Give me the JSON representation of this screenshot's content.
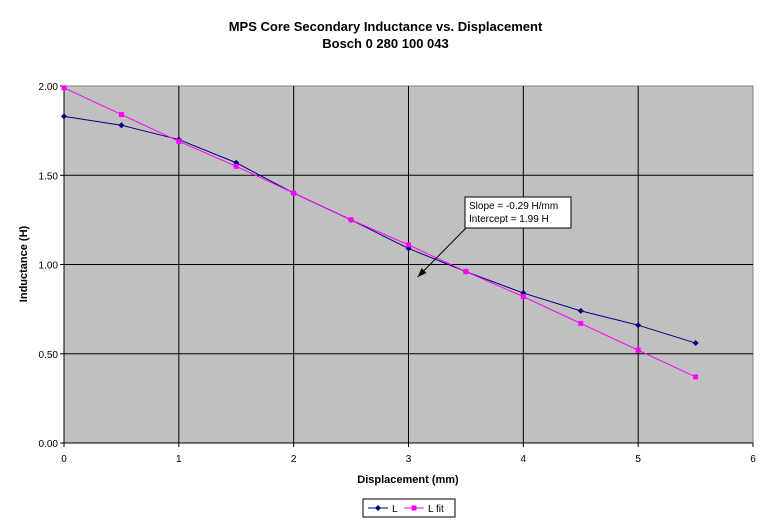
{
  "chart_data": {
    "type": "line",
    "title": "MPS Core Secondary Inductance vs. Displacement",
    "subtitle": "Bosch 0 280 100 043",
    "xlabel": "Displacement (mm)",
    "ylabel": "Inductance (H)",
    "xlim": [
      0,
      6
    ],
    "ylim": [
      0,
      2
    ],
    "x_ticks": [
      0,
      1,
      2,
      3,
      4,
      5,
      6
    ],
    "x_tick_labels": [
      "0",
      "1",
      "2",
      "3",
      "4",
      "5",
      "6"
    ],
    "y_ticks": [
      0,
      0.5,
      1.0,
      1.5,
      2.0
    ],
    "y_tick_labels": [
      "0.00",
      "0.50",
      "1.00",
      "1.50",
      "2.00"
    ],
    "grid": true,
    "plot_background": "#c0c0c0",
    "legend_placement": "bottom-center",
    "series": [
      {
        "name": "L",
        "color": "#000080",
        "marker": "diamond",
        "x": [
          0,
          0.5,
          1.0,
          1.5,
          2.0,
          2.5,
          3.0,
          3.5,
          4.0,
          4.5,
          5.0,
          5.5
        ],
        "y": [
          1.83,
          1.78,
          1.7,
          1.57,
          1.4,
          1.25,
          1.09,
          0.96,
          0.84,
          0.74,
          0.66,
          0.56
        ]
      },
      {
        "name": "L fit",
        "color": "#ff00ff",
        "marker": "square",
        "x": [
          0,
          0.5,
          1.0,
          1.5,
          2.0,
          2.5,
          3.0,
          3.5,
          4.0,
          4.5,
          5.0,
          5.5
        ],
        "y": [
          1.99,
          1.84,
          1.69,
          1.55,
          1.4,
          1.25,
          1.11,
          0.96,
          0.82,
          0.67,
          0.52,
          0.37
        ]
      }
    ],
    "annotation": {
      "lines": [
        "Slope = -0.29 H/mm",
        "Intercept = 1.99 H"
      ],
      "arrow_points_to": {
        "x": 3.08,
        "y": 0.93
      }
    }
  }
}
